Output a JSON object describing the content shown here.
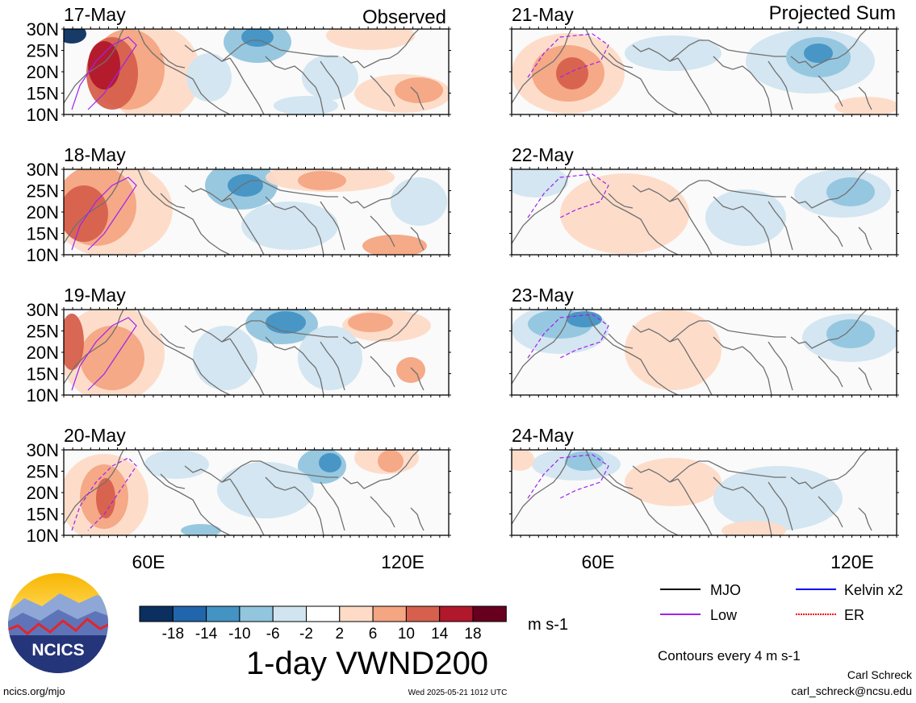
{
  "columns": {
    "left_label": "Observed",
    "right_label": "Projected Sum"
  },
  "panels": {
    "left": [
      {
        "date": "17-May"
      },
      {
        "date": "18-May"
      },
      {
        "date": "19-May"
      },
      {
        "date": "20-May"
      }
    ],
    "right": [
      {
        "date": "21-May"
      },
      {
        "date": "22-May"
      },
      {
        "date": "23-May"
      },
      {
        "date": "24-May"
      }
    ]
  },
  "map": {
    "lat_ticks": [
      "30N",
      "25N",
      "20N",
      "15N",
      "10N"
    ],
    "lon_ticks": [
      "60E",
      "120E"
    ],
    "lat_range": [
      10,
      30
    ],
    "lon_range": [
      42,
      128
    ]
  },
  "colorbar": {
    "labels": [
      "-18",
      "-14",
      "-10",
      "-6",
      "-2",
      "2",
      "6",
      "10",
      "14",
      "18"
    ],
    "units": "m s-1",
    "colors": [
      "#0b2f5f",
      "#2166ac",
      "#4393c3",
      "#92c5de",
      "#d1e5f0",
      "#ffffff",
      "#fddbc7",
      "#f4a582",
      "#d6604d",
      "#b2182b",
      "#67001f"
    ]
  },
  "title": "1-day VWND200",
  "legend": {
    "items": [
      {
        "label": "MJO",
        "color": "#000000",
        "style": "solid"
      },
      {
        "label": "Kelvin x2",
        "color": "#0000ff",
        "style": "solid"
      },
      {
        "label": "Low",
        "color": "#a020f0",
        "style": "solid"
      },
      {
        "label": "ER",
        "color": "#ff0000",
        "style": "dotted"
      }
    ],
    "contours_note": "Contours every 4 m s-1"
  },
  "logo": {
    "text": "NCICS"
  },
  "footer": {
    "url": "ncics.org/mjo",
    "timestamp": "Wed 2025-05-21 1012 UTC",
    "author": "Carl Schreck",
    "email": "carl_schreck@ncsu.edu"
  }
}
